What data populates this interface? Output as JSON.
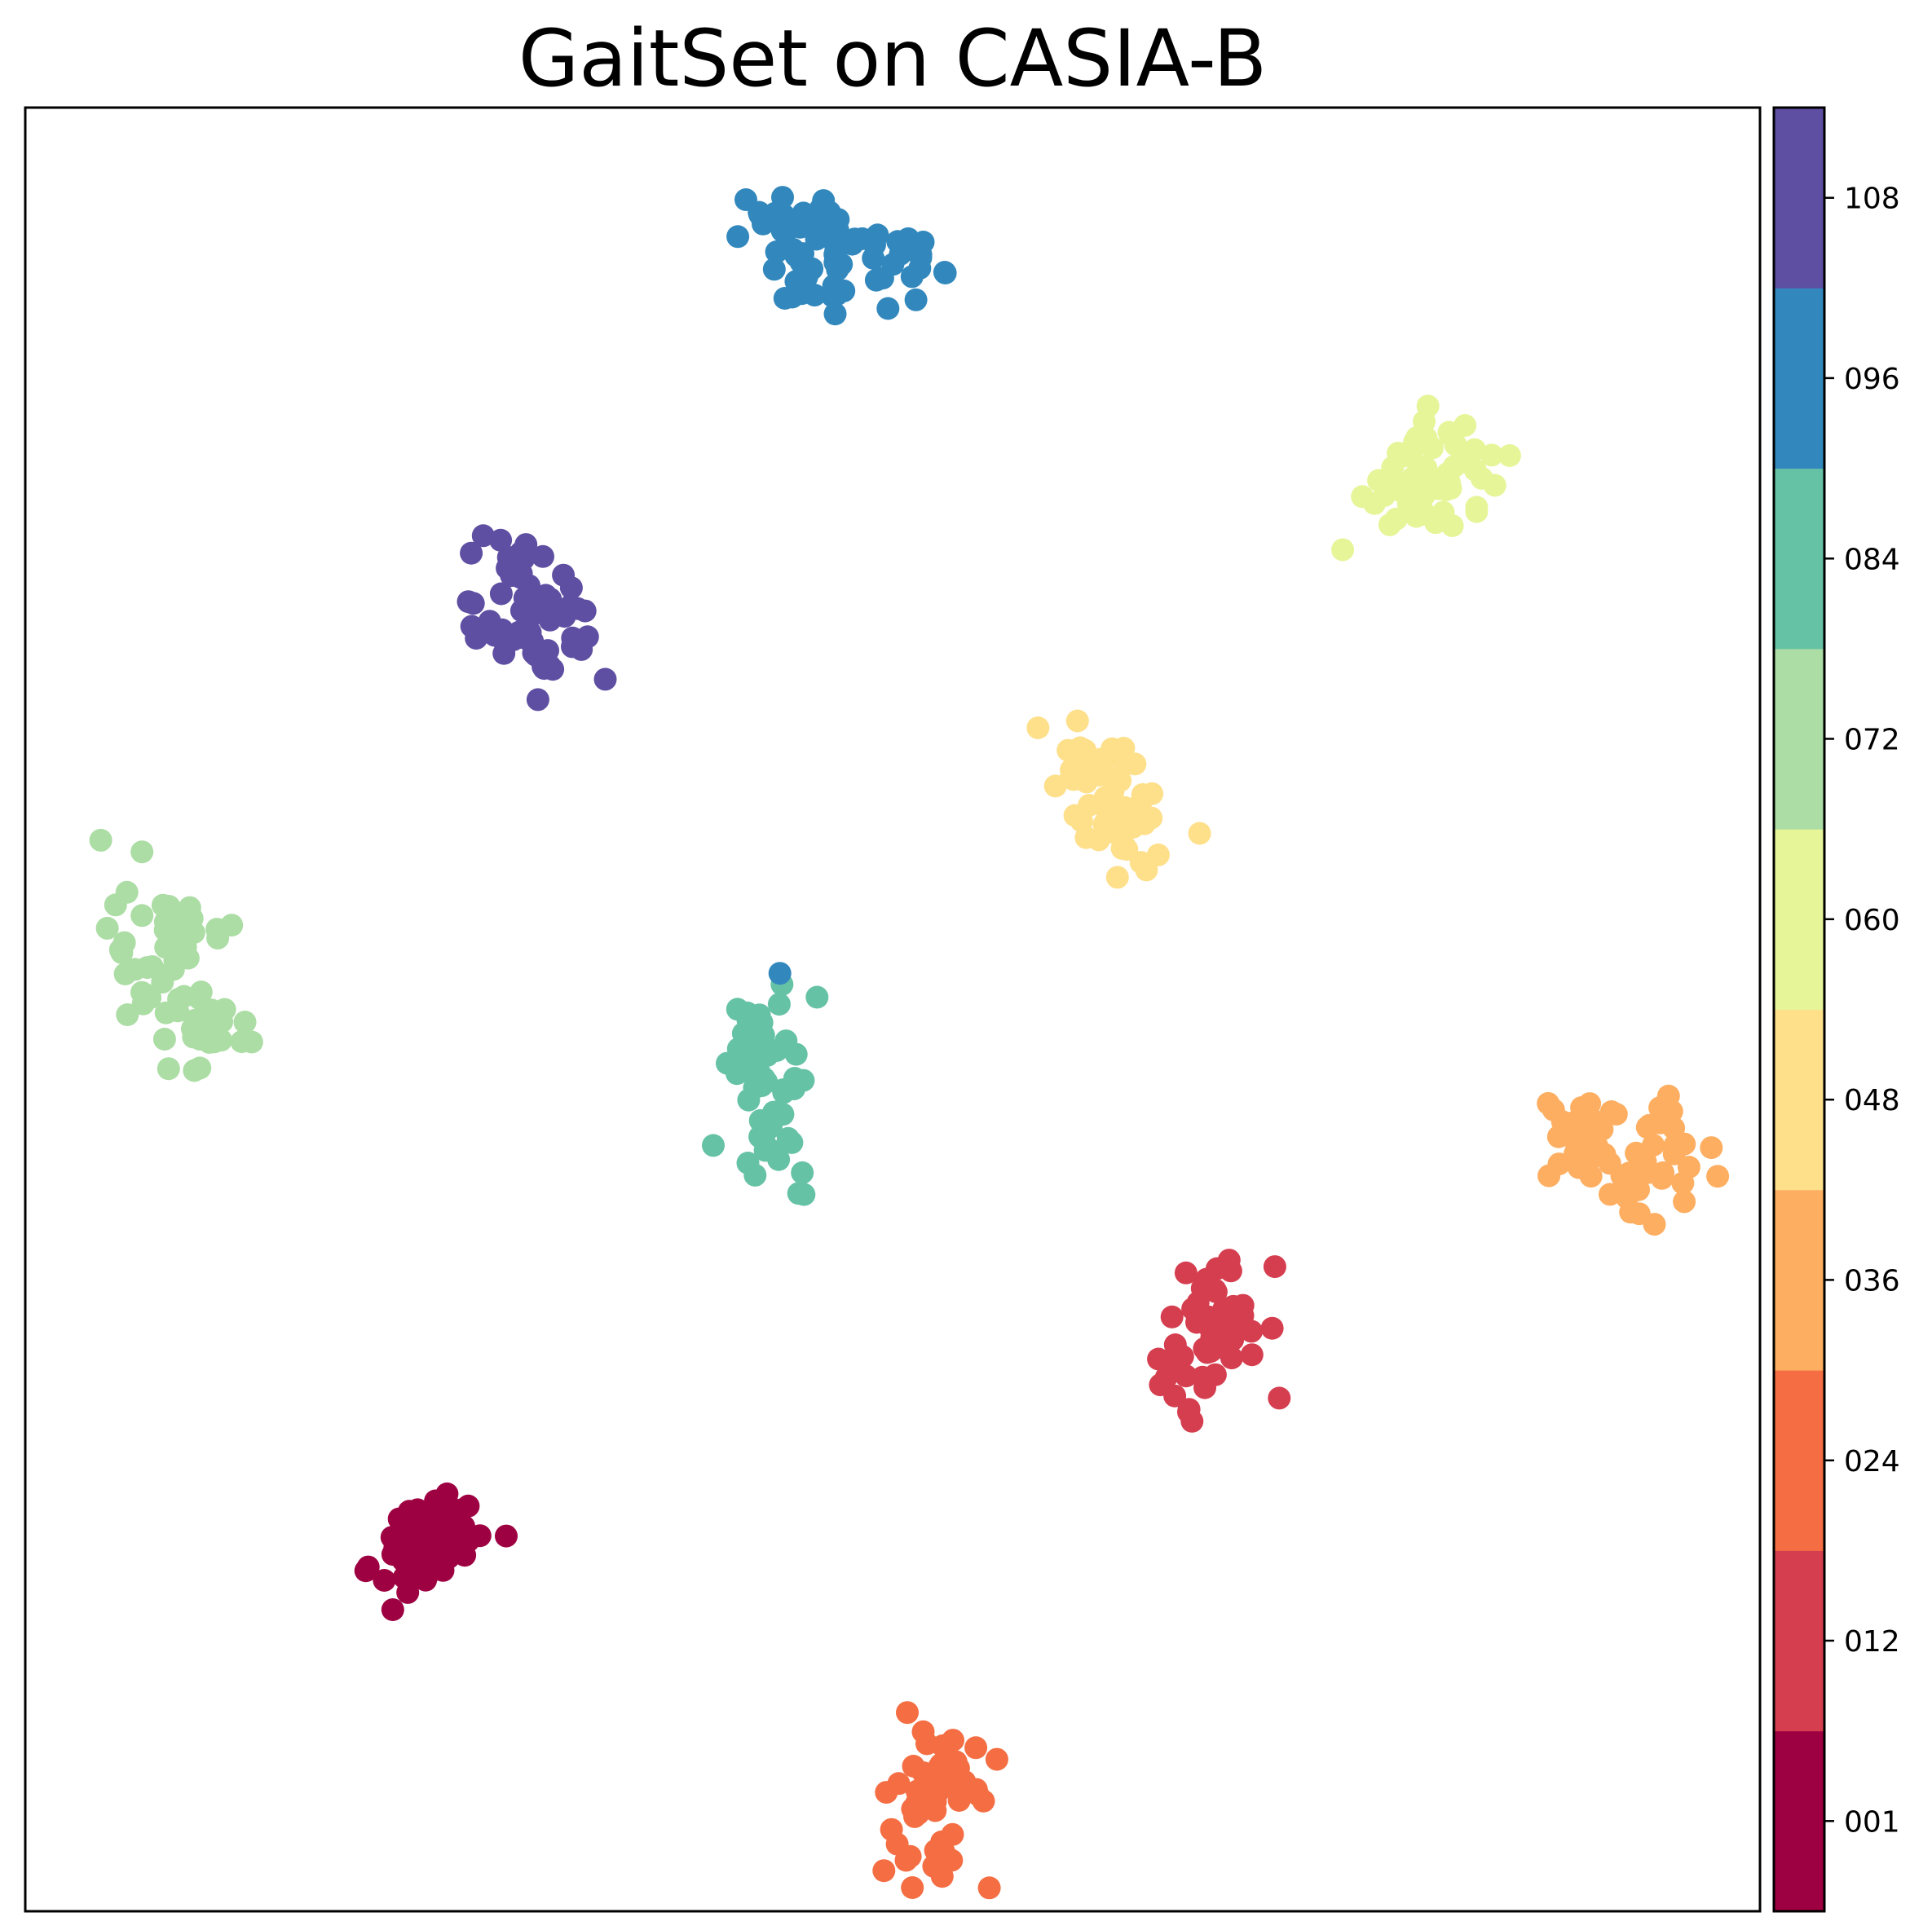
{
  "chart_data": {
    "type": "scatter",
    "title": "GaitSet on CASIA-B",
    "xlabel": "",
    "ylabel": "",
    "xlim": [
      0,
      100
    ],
    "ylim": [
      0,
      100
    ],
    "axis_ticks_visible": false,
    "grid": false,
    "marker": "filled circle",
    "colorbar": {
      "position": "right",
      "tick_labels": [
        "001",
        "012",
        "024",
        "036",
        "048",
        "060",
        "072",
        "084",
        "096",
        "108"
      ],
      "colors": [
        "#9e0142",
        "#d53e4f",
        "#f46d43",
        "#fdae61",
        "#fee08b",
        "#e6f598",
        "#abdda4",
        "#66c2a5",
        "#3288bd",
        "#5e4fa2"
      ]
    },
    "clusters": [
      {
        "label": "001",
        "color": "#9e0142",
        "center": [
          23,
          21
        ],
        "spread": [
          4.5,
          4.5
        ],
        "count": 70
      },
      {
        "label": "012",
        "color": "#d53e4f",
        "center": [
          67.5,
          31.5
        ],
        "spread": [
          4.5,
          4.5
        ],
        "count": 60
      },
      {
        "label": "024",
        "color": "#f46d43",
        "center": [
          52.5,
          5
        ],
        "spread": [
          4.5,
          4.2
        ],
        "count": 60
      },
      {
        "label": "036",
        "color": "#fdae61",
        "center": [
          92,
          43
        ],
        "spread": [
          4.2,
          5.2
        ],
        "count": 60
      },
      {
        "label": "048",
        "color": "#fee08b",
        "center": [
          63,
          62
        ],
        "spread": [
          4.5,
          4.5
        ],
        "count": 60
      },
      {
        "label": "060",
        "color": "#e6f598",
        "center": [
          79.5,
          79
        ],
        "spread": [
          5.5,
          3.8
        ],
        "count": 60
      },
      {
        "label": "072",
        "color": "#abdda4",
        "center": [
          9,
          52.5
        ],
        "spread": [
          5.5,
          5.8
        ],
        "count": 70
      },
      {
        "label": "084",
        "color": "#66c2a5",
        "center": [
          41,
          45.5
        ],
        "spread": [
          4.2,
          5.8
        ],
        "count": 60
      },
      {
        "label": "096",
        "color": "#3288bd",
        "center": [
          47,
          92
        ],
        "spread": [
          5.5,
          3.2
        ],
        "count": 70
      },
      {
        "label": "108",
        "color": "#5e4fa2",
        "center": [
          29,
          73
        ],
        "spread": [
          4.5,
          5.5
        ],
        "count": 60
      }
    ],
    "outliers": [
      {
        "label": "096",
        "color": "#3288bd",
        "x": 43.5,
        "y": 52
      }
    ]
  }
}
